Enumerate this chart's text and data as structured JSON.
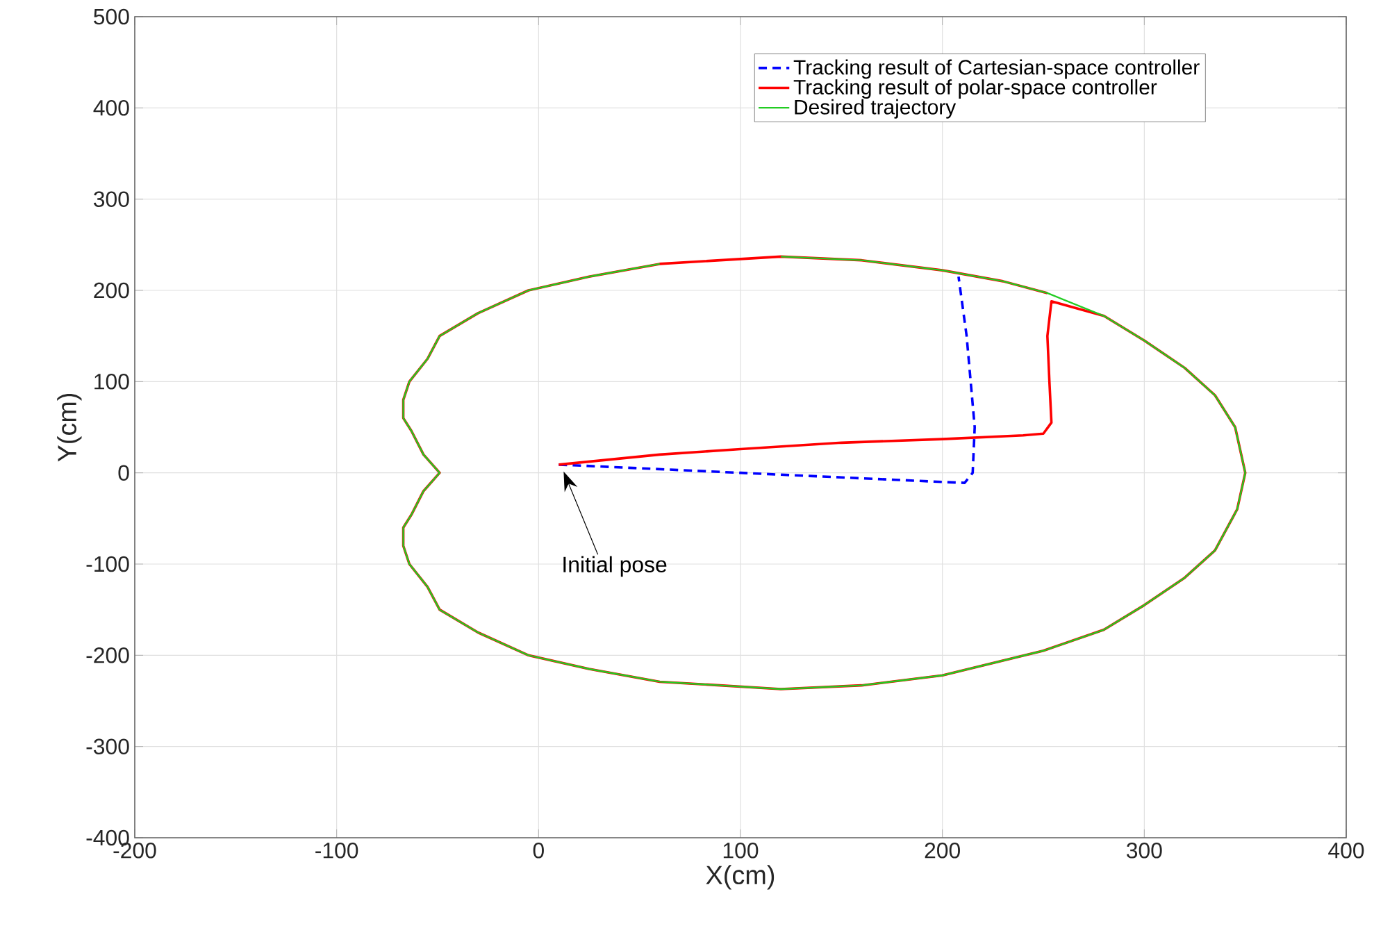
{
  "chart_data": {
    "type": "line",
    "xlabel": "X(cm)",
    "ylabel": "Y(cm)",
    "xlim": [
      -200,
      400
    ],
    "ylim": [
      -400,
      500
    ],
    "xticks": [
      -200,
      -100,
      0,
      100,
      200,
      300,
      400
    ],
    "yticks": [
      -400,
      -300,
      -200,
      -100,
      0,
      100,
      200,
      300,
      400,
      500
    ],
    "grid": true,
    "legend": "top right",
    "marker": "none",
    "annotations": [
      "Initial pose"
    ],
    "series": [
      {
        "name": "Tracking result of Cartesian-space controller",
        "color": "#0000ff",
        "line_style": "dashed",
        "x": [
          10,
          50,
          100,
          150,
          200,
          211,
          215,
          216,
          214,
          212,
          208
        ],
        "values": [
          9,
          5,
          0,
          -5,
          -10,
          -11,
          0,
          50,
          100,
          150,
          215
        ]
      },
      {
        "name": "Tracking result of polar-space controller",
        "color": "#ff0000",
        "line_style": "solid",
        "x": [
          10,
          60,
          100,
          150,
          200,
          240,
          250,
          254,
          253,
          252,
          254,
          280,
          300,
          320,
          335,
          345,
          350,
          346,
          335,
          320,
          300,
          280,
          250,
          200,
          160,
          120,
          60,
          25,
          -5,
          -30,
          -49,
          -55,
          -64,
          -67,
          -67,
          -63,
          -57,
          -49,
          -57,
          -63,
          -67,
          -67,
          -64,
          -55,
          -49,
          -30,
          -5,
          25,
          60,
          120,
          160,
          200,
          230,
          252
        ],
        "values": [
          9,
          20,
          26,
          33,
          37,
          41,
          43,
          55,
          100,
          150,
          188,
          172,
          145,
          115,
          85,
          50,
          0,
          -40,
          -85,
          -115,
          -145,
          -172,
          -195,
          -222,
          -233,
          -237,
          -229,
          -215,
          -200,
          -175,
          -150,
          -125,
          -100,
          -80,
          -60,
          -46,
          -20,
          0,
          20,
          46,
          60,
          80,
          100,
          125,
          150,
          175,
          200,
          215,
          229,
          237,
          233,
          222,
          210,
          197
        ]
      },
      {
        "name": "Desired trajectory",
        "color": "#22cc22",
        "line_style": "solid",
        "x": [
          120,
          160,
          200,
          230,
          252,
          280,
          300,
          320,
          335,
          345,
          350,
          346,
          335,
          320,
          300,
          280,
          250,
          200,
          160,
          120,
          60,
          25,
          -5,
          -30,
          -49,
          -55,
          -64,
          -67,
          -67,
          -63,
          -57,
          -49,
          -57,
          -63,
          -67,
          -67,
          -64,
          -55,
          -49,
          -30,
          -5,
          25,
          60
        ],
        "values": [
          237,
          233,
          222,
          210,
          197,
          172,
          145,
          115,
          85,
          50,
          0,
          -40,
          -85,
          -115,
          -145,
          -172,
          -195,
          -222,
          -233,
          -237,
          -229,
          -215,
          -200,
          -175,
          -150,
          -125,
          -100,
          -80,
          -60,
          -46,
          -20,
          0,
          20,
          46,
          60,
          80,
          100,
          125,
          150,
          175,
          200,
          215,
          229
        ]
      }
    ]
  }
}
